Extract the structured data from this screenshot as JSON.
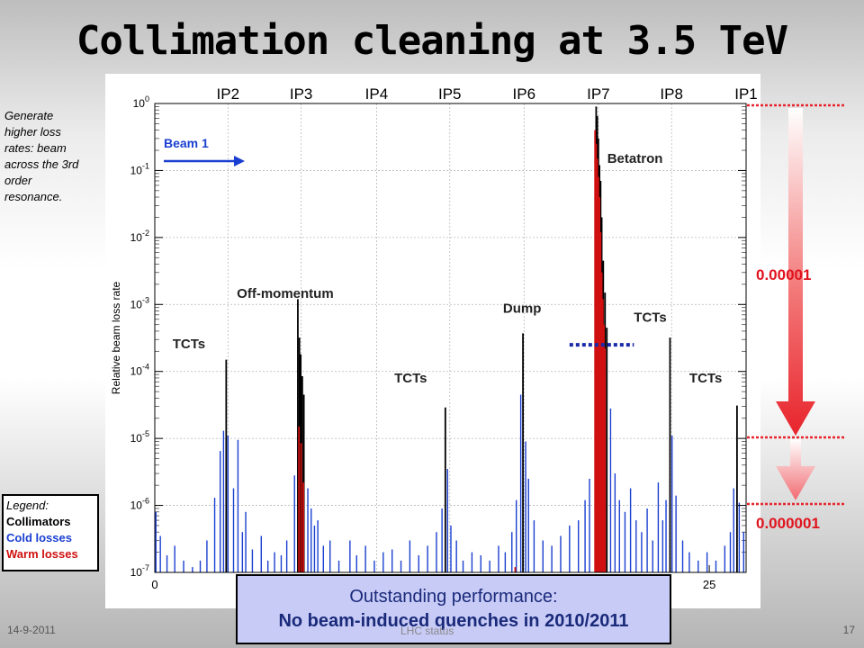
{
  "slide": {
    "title": "Collimation cleaning at 3.5 TeV",
    "side_note": "Generate higher loss rates: beam across the 3rd order resonance.",
    "legend": {
      "heading": "Legend:",
      "items": [
        {
          "label": "Collimators",
          "color": "#000000"
        },
        {
          "label": "Cold losses",
          "color": "#1a3fd0"
        },
        {
          "label": "Warm losses",
          "color": "#d01010"
        }
      ]
    },
    "performance": {
      "line1": "Outstanding performance:",
      "line2": "No beam-induced quenches in 2010/2011"
    },
    "footer": {
      "date": "14-9-2011",
      "center": "LHC status",
      "page": "17"
    },
    "ratio_labels": {
      "upper": "0.00001",
      "lower": "0.000001"
    },
    "arrow_color": "#e8242c"
  },
  "chart_data": {
    "type": "bar",
    "ylabel": "Relative beam loss rate",
    "yscale": "log",
    "ylim": [
      1e-07,
      1
    ],
    "xlim": [
      0,
      26.66
    ],
    "x_ticks": [
      {
        "value": 0,
        "label": "0"
      },
      {
        "value": 25,
        "label": "25"
      }
    ],
    "y_ticks": [
      {
        "value": 1e-07,
        "base": "10",
        "exp": "-7"
      },
      {
        "value": 1e-06,
        "base": "10",
        "exp": "-6"
      },
      {
        "value": 1e-05,
        "base": "10",
        "exp": "-5"
      },
      {
        "value": 0.0001,
        "base": "10",
        "exp": "-4"
      },
      {
        "value": 0.001,
        "base": "10",
        "exp": "-3"
      },
      {
        "value": 0.01,
        "base": "10",
        "exp": "-2"
      },
      {
        "value": 0.1,
        "base": "10",
        "exp": "-1"
      },
      {
        "value": 1,
        "base": "10",
        "exp": "0"
      }
    ],
    "grid": true,
    "ip_labels": [
      {
        "label": "IP2",
        "x": 3.3
      },
      {
        "label": "IP3",
        "x": 6.6
      },
      {
        "label": "IP4",
        "x": 10.0
      },
      {
        "label": "IP5",
        "x": 13.3
      },
      {
        "label": "IP6",
        "x": 16.65
      },
      {
        "label": "IP7",
        "x": 20.0
      },
      {
        "label": "IP8",
        "x": 23.3
      },
      {
        "label": "IP1",
        "x": 26.66
      }
    ],
    "beam_label": "Beam 1",
    "annotations": [
      {
        "text": "Betatron",
        "x": 20.4,
        "y": 0.13,
        "color": "#222222"
      },
      {
        "text": "Off-momentum",
        "x": 3.7,
        "y": 0.00125,
        "color": "#222222"
      },
      {
        "text": "Dump",
        "x": 15.7,
        "y": 0.00075,
        "color": "#222222"
      },
      {
        "text": "TCTs",
        "x": 21.6,
        "y": 0.00055,
        "color": "#222222"
      },
      {
        "text": "TCTs",
        "x": 0.8,
        "y": 0.00022,
        "color": "#222222"
      },
      {
        "text": "TCTs",
        "x": 10.8,
        "y": 6.8e-05,
        "color": "#222222"
      },
      {
        "text": "TCTs",
        "x": 24.1,
        "y": 6.8e-05,
        "color": "#222222"
      }
    ],
    "series": [
      {
        "name": "Collimators",
        "color": "#000000",
        "points": [
          [
            3.22,
            0.00015
          ],
          [
            6.45,
            0.0012
          ],
          [
            6.52,
            0.00032
          ],
          [
            6.58,
            0.00018
          ],
          [
            6.65,
            8.5e-05
          ],
          [
            6.72,
            4.5e-05
          ],
          [
            13.1,
            2.9e-05
          ],
          [
            16.6,
            0.00037
          ],
          [
            19.9,
            0.9
          ],
          [
            19.95,
            0.65
          ],
          [
            20.0,
            0.3
          ],
          [
            20.05,
            0.12
          ],
          [
            20.1,
            0.07
          ],
          [
            20.15,
            0.02
          ],
          [
            20.22,
            0.0045
          ],
          [
            20.3,
            0.0015
          ],
          [
            20.38,
            0.00045
          ],
          [
            23.23,
            0.00032
          ],
          [
            26.25,
            3.1e-05
          ]
        ]
      },
      {
        "name": "Cold losses",
        "color": "#1a3fd0",
        "points": [
          [
            0.05,
            8e-07
          ],
          [
            0.25,
            3.5e-07
          ],
          [
            0.55,
            1.8e-07
          ],
          [
            0.9,
            2.5e-07
          ],
          [
            1.3,
            1.5e-07
          ],
          [
            1.7,
            1.2e-07
          ],
          [
            2.05,
            1.5e-07
          ],
          [
            2.35,
            3e-07
          ],
          [
            2.7,
            1.3e-06
          ],
          [
            2.95,
            6.5e-06
          ],
          [
            3.1,
            1.3e-05
          ],
          [
            3.3,
            1.1e-05
          ],
          [
            3.55,
            1.8e-06
          ],
          [
            3.75,
            9.5e-06
          ],
          [
            3.95,
            4e-07
          ],
          [
            4.1,
            8e-07
          ],
          [
            4.4,
            2.2e-07
          ],
          [
            4.8,
            3.5e-07
          ],
          [
            5.1,
            1.5e-07
          ],
          [
            5.4,
            2e-07
          ],
          [
            5.7,
            1.8e-07
          ],
          [
            5.95,
            3e-07
          ],
          [
            6.3,
            2.8e-06
          ],
          [
            6.9,
            1.8e-06
          ],
          [
            7.05,
            9e-07
          ],
          [
            7.2,
            5e-07
          ],
          [
            7.35,
            6e-07
          ],
          [
            7.6,
            2.5e-07
          ],
          [
            7.9,
            3e-07
          ],
          [
            8.3,
            1.5e-07
          ],
          [
            8.8,
            3e-07
          ],
          [
            9.1,
            1.8e-07
          ],
          [
            9.5,
            2.5e-07
          ],
          [
            9.9,
            1.5e-07
          ],
          [
            10.3,
            2e-07
          ],
          [
            10.7,
            2.2e-07
          ],
          [
            11.1,
            1.5e-07
          ],
          [
            11.5,
            3e-07
          ],
          [
            11.9,
            1.8e-07
          ],
          [
            12.3,
            2.5e-07
          ],
          [
            12.7,
            4e-07
          ],
          [
            12.95,
            9e-07
          ],
          [
            13.2,
            3.5e-06
          ],
          [
            13.35,
            5e-07
          ],
          [
            13.6,
            3e-07
          ],
          [
            13.9,
            1.5e-07
          ],
          [
            14.3,
            2e-07
          ],
          [
            14.7,
            1.8e-07
          ],
          [
            15.1,
            1.5e-07
          ],
          [
            15.5,
            2.5e-07
          ],
          [
            15.8,
            2e-07
          ],
          [
            16.1,
            4e-07
          ],
          [
            16.3,
            1.2e-06
          ],
          [
            16.5,
            4.5e-05
          ],
          [
            16.72,
            9e-06
          ],
          [
            16.85,
            2.5e-06
          ],
          [
            17.1,
            6e-07
          ],
          [
            17.5,
            3e-07
          ],
          [
            17.9,
            2.5e-07
          ],
          [
            18.3,
            3.5e-07
          ],
          [
            18.7,
            5e-07
          ],
          [
            19.1,
            6e-07
          ],
          [
            19.4,
            1.2e-06
          ],
          [
            19.6,
            2.5e-06
          ],
          [
            20.55,
            2.8e-05
          ],
          [
            20.75,
            3e-06
          ],
          [
            20.95,
            1.2e-06
          ],
          [
            21.2,
            8e-07
          ],
          [
            21.45,
            1.8e-06
          ],
          [
            21.7,
            6e-07
          ],
          [
            21.95,
            4e-07
          ],
          [
            22.2,
            9e-07
          ],
          [
            22.45,
            3e-07
          ],
          [
            22.7,
            2.2e-06
          ],
          [
            22.9,
            6e-07
          ],
          [
            23.05,
            1.2e-06
          ],
          [
            23.32,
            1.1e-05
          ],
          [
            23.5,
            1.4e-06
          ],
          [
            23.8,
            3e-07
          ],
          [
            24.1,
            2e-07
          ],
          [
            24.5,
            1.5e-07
          ],
          [
            24.9,
            2e-07
          ],
          [
            25.3,
            1.5e-07
          ],
          [
            25.7,
            2.5e-07
          ],
          [
            25.95,
            4e-07
          ],
          [
            26.1,
            1.8e-06
          ],
          [
            26.35,
            1.1e-06
          ],
          [
            26.55,
            4e-07
          ]
        ]
      },
      {
        "name": "Warm losses",
        "color": "#d01010",
        "points": [
          [
            6.5,
            1.5e-05
          ],
          [
            6.6,
            8.5e-06
          ],
          [
            6.7,
            2.2e-06
          ],
          [
            16.25,
            1.2e-07
          ],
          [
            19.85,
            0.4
          ],
          [
            19.9,
            0.25
          ],
          [
            19.95,
            0.15
          ],
          [
            20.0,
            0.08
          ],
          [
            20.05,
            0.04
          ],
          [
            20.1,
            0.012
          ],
          [
            20.15,
            0.003
          ],
          [
            20.2,
            0.0012
          ],
          [
            20.25,
            0.0005
          ],
          [
            20.3,
            0.00022
          ]
        ]
      }
    ]
  }
}
